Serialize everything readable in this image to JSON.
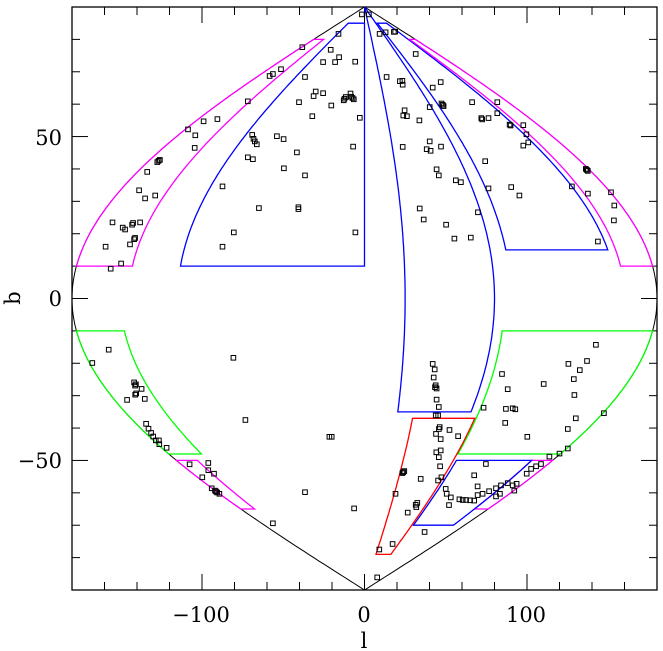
{
  "chart_data": {
    "type": "scatter",
    "projection": "sinusoidal (Galactic l, b)",
    "xlabel": "l",
    "ylabel": "b",
    "xlim": [
      -180,
      180
    ],
    "ylim": [
      -90,
      90
    ],
    "grid": false,
    "x_major_ticks": [
      -100,
      0,
      100
    ],
    "x_tick_labels": [
      "−100",
      "0",
      "100"
    ],
    "x_minor_step": 20,
    "y_major_ticks": [
      -50,
      0,
      50
    ],
    "y_tick_labels": [
      "−50",
      "0",
      "50"
    ],
    "y_minor_step": 10,
    "marker": "open-square",
    "colors": {
      "outline": "#000000",
      "points": "#000000",
      "magenta": "#ff00ff",
      "blue": "#0000ff",
      "green": "#00ff00",
      "red": "#ff0000"
    },
    "regions": [
      {
        "color": "#ff00ff",
        "l": [
          -180,
          -145
        ],
        "b": [
          10,
          80
        ]
      },
      {
        "color": "#0000ff",
        "l": [
          -115,
          0
        ],
        "b": [
          10,
          85
        ]
      },
      {
        "color": "#0000ff",
        "l": [
          25,
          80
        ],
        "b": [
          -35,
          90
        ]
      },
      {
        "color": "#0000ff",
        "l": [
          90,
          155
        ],
        "b": [
          15,
          85
        ]
      },
      {
        "color": "#ff00ff",
        "l": [
          160,
          180
        ],
        "b": [
          10,
          80
        ]
      },
      {
        "color": "#00ff00",
        "l": [
          -180,
          -150
        ],
        "b": [
          -48,
          -10
        ]
      },
      {
        "color": "#ff00ff",
        "l": [
          -180,
          -160
        ],
        "b": [
          -65,
          -50
        ]
      },
      {
        "color": "#00ff00",
        "l": [
          86,
          180
        ],
        "b": [
          -48,
          -10
        ]
      },
      {
        "color": "#ff00ff",
        "l": [
          160,
          180
        ],
        "b": [
          -65,
          -50
        ]
      },
      {
        "color": "#0000ff",
        "l": [
          88,
          160
        ],
        "b": [
          -70,
          -50
        ]
      },
      {
        "color": "#ff0000",
        "l": [
          37,
          85
        ],
        "b": [
          -79,
          -37
        ]
      }
    ],
    "points": [
      [
        -1.6,
        87.7
      ],
      [
        -38.3,
        77.6
      ],
      [
        -16,
        81.7
      ],
      [
        -20.8,
        76.8
      ],
      [
        -25.5,
        73
      ],
      [
        -18.1,
        73
      ],
      [
        -15.6,
        74.5
      ],
      [
        -5.7,
        73.1
      ],
      [
        -51.4,
        70.8
      ],
      [
        -56.4,
        69.3
      ],
      [
        -58.4,
        68.7
      ],
      [
        -36.6,
        68.4
      ],
      [
        -71.8,
        60.9
      ],
      [
        -40.3,
        60.6
      ],
      [
        -30,
        63.9
      ],
      [
        -31.3,
        62.5
      ],
      [
        -25.5,
        63.4
      ],
      [
        -12.3,
        61.7
      ],
      [
        -11.5,
        62.2
      ],
      [
        -12.8,
        61.2
      ],
      [
        -7.4,
        61.9
      ],
      [
        -6.6,
        61.5
      ],
      [
        -8.2,
        62.3
      ],
      [
        -8.6,
        63.3
      ],
      [
        -20.4,
        59.6
      ],
      [
        -32.1,
        56.3
      ],
      [
        -2.9,
        55.8
      ],
      [
        -90.5,
        55.4
      ],
      [
        -99,
        54.7
      ],
      [
        -108.6,
        52.2
      ],
      [
        -104.1,
        50.4
      ],
      [
        -104.5,
        46.5
      ],
      [
        -69.1,
        50.5
      ],
      [
        -67.5,
        48.5
      ],
      [
        -66.3,
        47.6
      ],
      [
        -68.3,
        49.3
      ],
      [
        -53.9,
        50.1
      ],
      [
        -49.8,
        49.2
      ],
      [
        -71.8,
        43.6
      ],
      [
        -68.7,
        43
      ],
      [
        -41.6,
        45.1
      ],
      [
        -7,
        46.9
      ],
      [
        -49.6,
        40.2
      ],
      [
        -36.6,
        38
      ],
      [
        -126.7,
        42.5
      ],
      [
        -127.5,
        42.1
      ],
      [
        -125.9,
        42.8
      ],
      [
        -133.7,
        39.1
      ],
      [
        -138.7,
        33.4
      ],
      [
        -135,
        30.9
      ],
      [
        -128.8,
        31.8
      ],
      [
        -87.4,
        34.6
      ],
      [
        -65,
        27.9
      ],
      [
        -40.7,
        28.2
      ],
      [
        -40.7,
        27.6
      ],
      [
        -155.1,
        23.5
      ],
      [
        -138.1,
        23.5
      ],
      [
        -148.8,
        21.9
      ],
      [
        -147.3,
        21.3
      ],
      [
        -143,
        22.8
      ],
      [
        -142.4,
        23.3
      ],
      [
        -141.8,
        18.3
      ],
      [
        -141.2,
        18.7
      ],
      [
        -144.3,
        16.7
      ],
      [
        -159.3,
        16
      ],
      [
        -149.8,
        10.8
      ],
      [
        -156.2,
        9.2
      ],
      [
        -80.4,
        20.4
      ],
      [
        -87.4,
        16
      ],
      [
        -5.6,
        20.4
      ],
      [
        2.7,
        87.7
      ],
      [
        9.3,
        81.7
      ],
      [
        13,
        82.2
      ],
      [
        18.1,
        82.3
      ],
      [
        18.9,
        82.4
      ],
      [
        31.5,
        75.5
      ],
      [
        13.6,
        68.4
      ],
      [
        21.8,
        67.1
      ],
      [
        23.3,
        67.2
      ],
      [
        23.5,
        66
      ],
      [
        46.9,
        66.8
      ],
      [
        42,
        65.1
      ],
      [
        48.1,
        59.8
      ],
      [
        47.4,
        60.2
      ],
      [
        48.7,
        59.4
      ],
      [
        40.1,
        59.1
      ],
      [
        24.7,
        58.1
      ],
      [
        23.9,
        56.5
      ],
      [
        26.1,
        56.3
      ],
      [
        33.8,
        55
      ],
      [
        66.2,
        60.6
      ],
      [
        81.7,
        60.6
      ],
      [
        81.7,
        57.2
      ],
      [
        76.3,
        55.7
      ],
      [
        72.4,
        55.3
      ],
      [
        71.9,
        55.7
      ],
      [
        89.3,
        53.7
      ],
      [
        89.9,
        53.4
      ],
      [
        97.7,
        53.5
      ],
      [
        99.6,
        50.7
      ],
      [
        100.8,
        48.2
      ],
      [
        97.7,
        47.2
      ],
      [
        23.5,
        46.8
      ],
      [
        38.3,
        46.1
      ],
      [
        40.7,
        45.6
      ],
      [
        40.1,
        48.5
      ],
      [
        47.1,
        46.9
      ],
      [
        74.3,
        42.4
      ],
      [
        44.4,
        39.9
      ],
      [
        45.7,
        38
      ],
      [
        56.2,
        36.5
      ],
      [
        59.3,
        35.9
      ],
      [
        76.3,
        34
      ],
      [
        90.3,
        34.4
      ],
      [
        95.3,
        31.8
      ],
      [
        127.6,
        34.6
      ],
      [
        136.8,
        39.7
      ],
      [
        136.2,
        40
      ],
      [
        137.4,
        39.4
      ],
      [
        137.5,
        32.4
      ],
      [
        151.7,
        32.8
      ],
      [
        153.7,
        28.7
      ],
      [
        153.5,
        24.1
      ],
      [
        143.6,
        17.6
      ],
      [
        34,
        27.8
      ],
      [
        36.4,
        24.4
      ],
      [
        50.2,
        22.8
      ],
      [
        69.8,
        26.6
      ],
      [
        55.3,
        18.5
      ],
      [
        65.4,
        18.8
      ],
      [
        -157.4,
        -15.8
      ],
      [
        -167.5,
        -19.9
      ],
      [
        -80.7,
        -18.3
      ],
      [
        -141.8,
        -25.9
      ],
      [
        -140.7,
        -26.5
      ],
      [
        -141.2,
        -26.9
      ],
      [
        -137.2,
        -27.9
      ],
      [
        -141.1,
        -29.7
      ],
      [
        -140.5,
        -29.3
      ],
      [
        -146.1,
        -31.3
      ],
      [
        -135.2,
        -31
      ],
      [
        -134.4,
        -38.7
      ],
      [
        -132.9,
        -40.2
      ],
      [
        -131.3,
        -41.5
      ],
      [
        -130,
        -42.6
      ],
      [
        -128.4,
        -43.8
      ],
      [
        -126.5,
        -43.8
      ],
      [
        -126.3,
        -45
      ],
      [
        -121.8,
        -46.1
      ],
      [
        -73.3,
        -37.5
      ],
      [
        -20.2,
        -42.7
      ],
      [
        -21.6,
        -42.7
      ],
      [
        -107.6,
        -51.2
      ],
      [
        -96.1,
        -50.8
      ],
      [
        -96.1,
        -53
      ],
      [
        -92.6,
        -54.1
      ],
      [
        -99.8,
        -55.2
      ],
      [
        -94,
        -58.6
      ],
      [
        -91.4,
        -59.6
      ],
      [
        -90.7,
        -59.9
      ],
      [
        -92,
        -59.3
      ],
      [
        -89.3,
        -60.3
      ],
      [
        -36.6,
        -59.8
      ],
      [
        -6.4,
        -64.8
      ],
      [
        -56.4,
        -69.4
      ],
      [
        42,
        -20.2
      ],
      [
        43.2,
        -21.9
      ],
      [
        42.6,
        -24.4
      ],
      [
        43.8,
        -26.8
      ],
      [
        44.4,
        -27.8
      ],
      [
        43.4,
        -27.4
      ],
      [
        44.4,
        -31.2
      ],
      [
        45.7,
        -33.5
      ],
      [
        45.3,
        -36.1
      ],
      [
        43.8,
        -36.1
      ],
      [
        46.3,
        -39.7
      ],
      [
        45.8,
        -40.3
      ],
      [
        44,
        -41.8
      ],
      [
        46.9,
        -43.4
      ],
      [
        46.9,
        -46.9
      ],
      [
        44.2,
        -47.5
      ],
      [
        45.7,
        -49
      ],
      [
        46.5,
        -51.8
      ],
      [
        47.3,
        -55.2
      ],
      [
        45.3,
        -56.2
      ],
      [
        50,
        -58.8
      ],
      [
        50.6,
        -60.3
      ],
      [
        53.1,
        -61.4
      ],
      [
        58.4,
        -62
      ],
      [
        60.4,
        -62.2
      ],
      [
        62.5,
        -62.2
      ],
      [
        65,
        -62.3
      ],
      [
        67.5,
        -62.4
      ],
      [
        69.6,
        -60.7
      ],
      [
        72.7,
        -60.3
      ],
      [
        76.7,
        -59.5
      ],
      [
        80.9,
        -58.6
      ],
      [
        84,
        -57.7
      ],
      [
        88.1,
        -57
      ],
      [
        91.2,
        -57.7
      ],
      [
        93.6,
        -57.2
      ],
      [
        92.2,
        -59.3
      ],
      [
        83.3,
        -60.3
      ],
      [
        80.9,
        -61.1
      ],
      [
        99.8,
        -54.1
      ],
      [
        102.5,
        -52.6
      ],
      [
        105.6,
        -51.8
      ],
      [
        108.6,
        -51.1
      ],
      [
        113.8,
        -48.8
      ],
      [
        120,
        -47.9
      ],
      [
        125.1,
        -46.3
      ],
      [
        23.9,
        -53.6
      ],
      [
        23.3,
        -53.9
      ],
      [
        24.5,
        -53.3
      ],
      [
        32.5,
        -63.1
      ],
      [
        31.9,
        -64.4
      ],
      [
        31.5,
        -63.7
      ],
      [
        34.6,
        -55.7
      ],
      [
        19.1,
        -60.3
      ],
      [
        26.6,
        -66.1
      ],
      [
        37,
        -72.1
      ],
      [
        17.3,
        -75.8
      ],
      [
        9.1,
        -77.5
      ],
      [
        7.8,
        -86.1
      ],
      [
        52.3,
        -40.6
      ],
      [
        57.6,
        -42.5
      ],
      [
        52,
        -63.8
      ],
      [
        67.5,
        -54.6
      ],
      [
        74.7,
        -51.1
      ],
      [
        69.6,
        -58
      ],
      [
        84.6,
        -23.3
      ],
      [
        88.1,
        -28
      ],
      [
        87,
        -34.1
      ],
      [
        91.2,
        -33.9
      ],
      [
        92.8,
        -34.2
      ],
      [
        73.3,
        -33.7
      ],
      [
        86.6,
        -38.4
      ],
      [
        100.2,
        -42.7
      ],
      [
        110.3,
        -26.4
      ],
      [
        125.5,
        -20.2
      ],
      [
        132.5,
        -22.1
      ],
      [
        136.9,
        -19.3
      ],
      [
        142.4,
        -14.3
      ],
      [
        128.8,
        -24.9
      ],
      [
        129.2,
        -29.8
      ],
      [
        130,
        -37
      ],
      [
        125.1,
        -40.3
      ],
      [
        147.3,
        -35.4
      ]
    ]
  }
}
